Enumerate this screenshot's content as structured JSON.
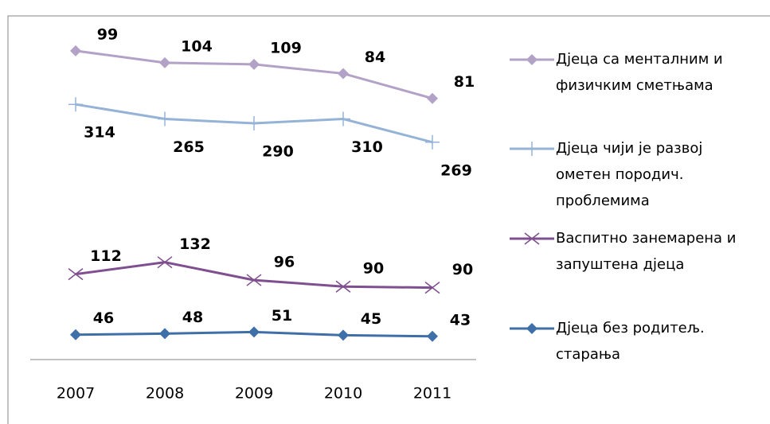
{
  "chart_data": {
    "type": "stacked-line",
    "categories": [
      "2007",
      "2008",
      "2009",
      "2010",
      "2011"
    ],
    "series": [
      {
        "name": "Дјеца са менталним и физичким сметњама",
        "color": "#b3a2c7",
        "marker": "diamond",
        "values": [
          99,
          104,
          109,
          84,
          81
        ]
      },
      {
        "name": "Дјеца чији је развој ометен породич. проблемима",
        "color": "#95b3d7",
        "marker": "plus",
        "values": [
          314,
          265,
          290,
          310,
          269
        ]
      },
      {
        "name": "Васпитно занемарена и запуштена дјеца",
        "color": "#7f4f8f",
        "marker": "x",
        "values": [
          112,
          132,
          96,
          90,
          90
        ]
      },
      {
        "name": "Дјеца без родитељ. старања",
        "color": "#3f6fa8",
        "marker": "diamond",
        "values": [
          46,
          48,
          51,
          45,
          43
        ]
      }
    ],
    "ylim": [
      0,
      640
    ],
    "legend": "right"
  }
}
